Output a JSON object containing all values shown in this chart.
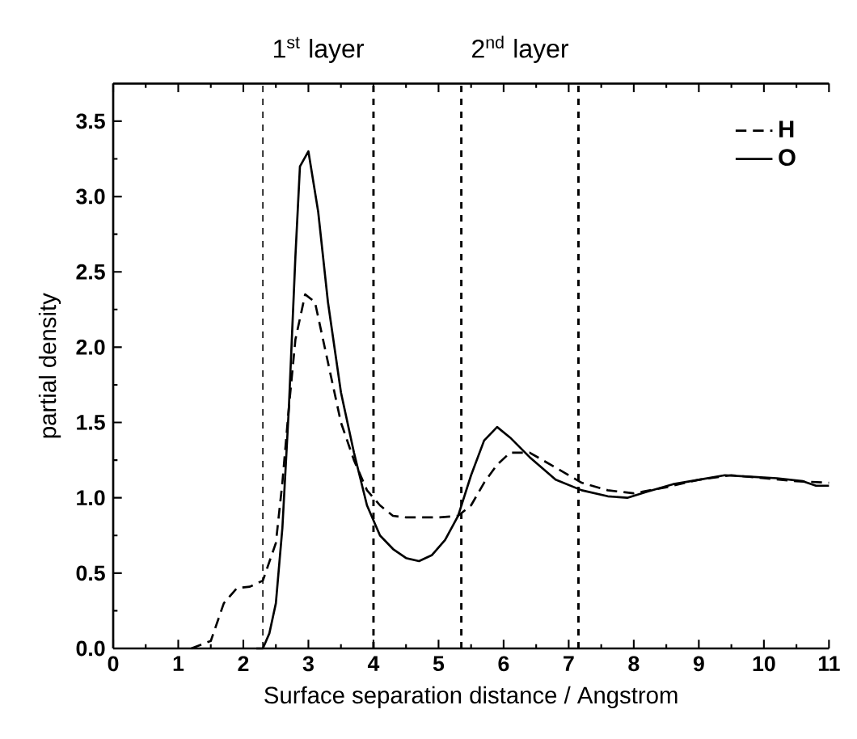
{
  "chart_data": {
    "type": "line",
    "xlabel": "Surface separation distance / Angstrom",
    "ylabel": "partial density",
    "xlim": [
      0,
      11
    ],
    "ylim": [
      0,
      3.75
    ],
    "xticks": [
      0,
      1,
      2,
      3,
      4,
      5,
      6,
      7,
      8,
      9,
      10,
      11
    ],
    "yticks": [
      {
        "value": 0,
        "label": "0.0"
      },
      0.5,
      {
        "value": 1,
        "label": "1.0"
      },
      1.5,
      {
        "value": 2,
        "label": "2.0"
      },
      2.5,
      {
        "value": 3,
        "label": "3.0"
      },
      3.5
    ],
    "series": [
      {
        "name": "H",
        "color": "#000000",
        "line_style": "dashed",
        "x": [
          1.2,
          1.5,
          1.7,
          1.9,
          2.1,
          2.3,
          2.5,
          2.6,
          2.7,
          2.8,
          2.95,
          3.1,
          3.3,
          3.5,
          3.7,
          3.9,
          4.1,
          4.3,
          4.5,
          5.0,
          5.3,
          5.5,
          5.7,
          5.9,
          6.1,
          6.4,
          6.8,
          7.2,
          7.6,
          8.0,
          8.5,
          9.0,
          9.5,
          10.0,
          10.5,
          11.0
        ],
        "values": [
          0,
          0.05,
          0.3,
          0.4,
          0.41,
          0.45,
          0.7,
          1.1,
          1.6,
          2.05,
          2.35,
          2.3,
          1.9,
          1.5,
          1.25,
          1.05,
          0.95,
          0.88,
          0.87,
          0.87,
          0.88,
          0.95,
          1.1,
          1.22,
          1.3,
          1.3,
          1.2,
          1.1,
          1.05,
          1.03,
          1.07,
          1.12,
          1.15,
          1.13,
          1.11,
          1.1
        ]
      },
      {
        "name": "O",
        "color": "#000000",
        "line_style": "solid",
        "x": [
          2.2,
          2.3,
          2.4,
          2.5,
          2.6,
          2.7,
          2.8,
          2.87,
          3.0,
          3.15,
          3.3,
          3.5,
          3.7,
          3.9,
          4.1,
          4.3,
          4.5,
          4.7,
          4.9,
          5.1,
          5.3,
          5.5,
          5.7,
          5.9,
          6.1,
          6.4,
          6.8,
          7.2,
          7.6,
          7.9,
          8.2,
          8.6,
          9.0,
          9.4,
          9.8,
          10.2,
          10.6,
          10.8,
          11.0
        ],
        "values": [
          0,
          0,
          0.1,
          0.3,
          0.8,
          1.6,
          2.6,
          3.2,
          3.3,
          2.9,
          2.3,
          1.7,
          1.3,
          0.95,
          0.75,
          0.66,
          0.6,
          0.58,
          0.62,
          0.72,
          0.88,
          1.15,
          1.38,
          1.47,
          1.4,
          1.27,
          1.12,
          1.05,
          1.01,
          1.0,
          1.04,
          1.09,
          1.12,
          1.15,
          1.14,
          1.13,
          1.11,
          1.08,
          1.08
        ]
      }
    ],
    "ref_lines": [
      {
        "axis": "x",
        "value": 2.3,
        "line_style": "dashed"
      },
      {
        "axis": "x",
        "value": 4.0,
        "line_style": "dashed"
      },
      {
        "axis": "x",
        "value": 5.35,
        "line_style": "dashed"
      },
      {
        "axis": "x",
        "value": 7.15,
        "line_style": "dashed"
      }
    ],
    "annotations": [
      "1$^{st}$ layer",
      "2$^{nd}$ layer"
    ],
    "legend": "top right",
    "grid": false,
    "marker": "none"
  }
}
